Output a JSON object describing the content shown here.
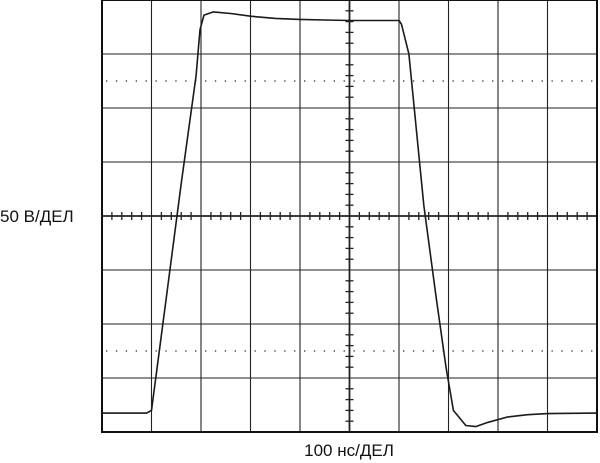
{
  "chart_data": {
    "type": "line",
    "xlabel": "100 нс/ДЕЛ",
    "ylabel": "50 В/ДЕЛ",
    "xlim": [
      0,
      10
    ],
    "ylim": [
      -4,
      4
    ],
    "divisions": {
      "x": 10,
      "y": 8
    },
    "grid": true,
    "colors": {
      "trace": "#1a1a1a",
      "grid": "#222222",
      "background": "#ffffff"
    },
    "series": [
      {
        "values_unit": "divisions",
        "points": [
          [
            0.0,
            -3.65
          ],
          [
            0.9,
            -3.65
          ],
          [
            1.0,
            -3.6
          ],
          [
            1.3,
            -1.5
          ],
          [
            1.6,
            0.6
          ],
          [
            1.9,
            2.6
          ],
          [
            1.98,
            3.45
          ],
          [
            2.06,
            3.72
          ],
          [
            2.25,
            3.78
          ],
          [
            2.6,
            3.75
          ],
          [
            3.0,
            3.7
          ],
          [
            3.5,
            3.66
          ],
          [
            4.0,
            3.64
          ],
          [
            4.5,
            3.63
          ],
          [
            5.0,
            3.62
          ],
          [
            5.5,
            3.62
          ],
          [
            6.0,
            3.62
          ],
          [
            6.05,
            3.55
          ],
          [
            6.2,
            3.0
          ],
          [
            6.5,
            0.2
          ],
          [
            6.75,
            -1.5
          ],
          [
            6.95,
            -2.8
          ],
          [
            7.1,
            -3.6
          ],
          [
            7.35,
            -3.88
          ],
          [
            7.55,
            -3.9
          ],
          [
            7.8,
            -3.82
          ],
          [
            8.2,
            -3.72
          ],
          [
            8.6,
            -3.68
          ],
          [
            9.0,
            -3.66
          ],
          [
            10.0,
            -3.65
          ]
        ]
      }
    ]
  }
}
